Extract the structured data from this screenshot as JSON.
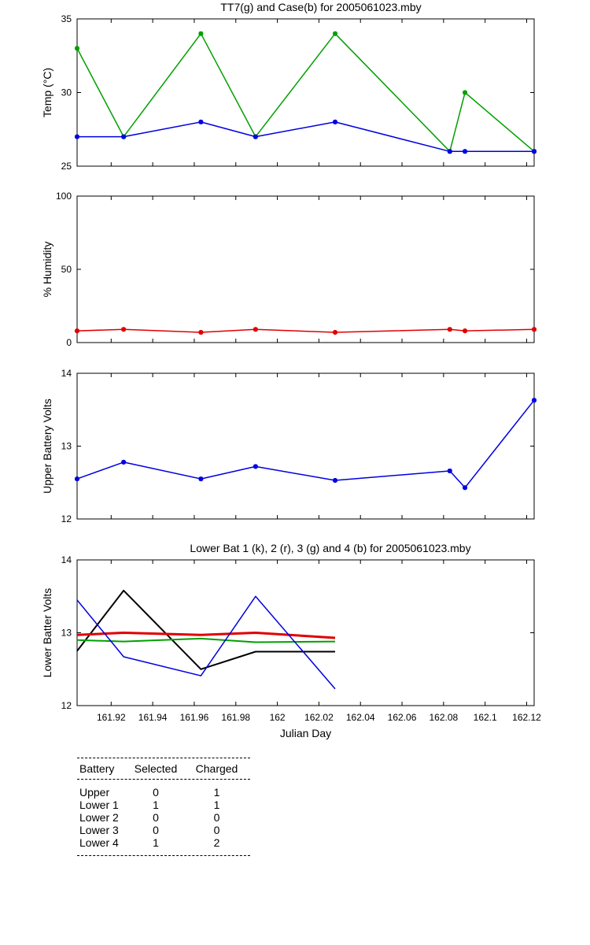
{
  "chart_data": [
    {
      "type": "line",
      "title": "TT7(g) and Case(b) for 2005061023.mby",
      "xlabel": "",
      "ylabel": "Temp  (°C)",
      "xlim": [
        161.9036,
        162.1236
      ],
      "ylim": [
        25,
        35
      ],
      "yticks": [
        "25",
        "30",
        "35"
      ],
      "xticks": [
        161.92,
        161.94,
        161.96,
        161.98,
        162.0,
        162.02,
        162.04,
        162.06,
        162.08,
        162.1,
        162.12
      ],
      "grid": false,
      "series": [
        {
          "color": "#00a000",
          "markers": true,
          "x": [
            161.9036,
            161.926,
            161.9632,
            161.9895,
            162.0278,
            162.083,
            162.0903,
            162.1236
          ],
          "y": [
            33,
            27,
            34,
            27,
            34,
            26,
            30,
            26
          ]
        },
        {
          "color": "#0000e0",
          "markers": true,
          "x": [
            161.9036,
            161.926,
            161.9632,
            161.9895,
            162.0278,
            162.083,
            162.0903,
            162.1236
          ],
          "y": [
            27,
            27,
            28,
            27,
            28,
            26,
            26,
            26
          ]
        }
      ]
    },
    {
      "type": "line",
      "title": "",
      "xlabel": "",
      "ylabel": "% Humidity",
      "xlim": [
        161.9036,
        162.1236
      ],
      "ylim": [
        0,
        100
      ],
      "yticks": [
        "0",
        "50",
        "100"
      ],
      "grid": false,
      "series": [
        {
          "color": "#e00000",
          "markers": true,
          "x": [
            161.9036,
            161.926,
            161.9632,
            161.9895,
            162.0278,
            162.083,
            162.0903,
            162.1236
          ],
          "y": [
            8,
            9,
            7,
            9,
            7,
            9,
            8,
            9
          ]
        }
      ]
    },
    {
      "type": "line",
      "title": "",
      "xlabel": "",
      "ylabel": "Upper Battery Volts",
      "xlim": [
        161.9036,
        162.1236
      ],
      "ylim": [
        12,
        14
      ],
      "yticks": [
        "12",
        "13",
        "14"
      ],
      "grid": false,
      "series": [
        {
          "color": "#0000e0",
          "markers": true,
          "x": [
            161.9036,
            161.926,
            161.9632,
            161.9895,
            162.0278,
            162.083,
            162.0903,
            162.1236
          ],
          "y": [
            12.55,
            12.78,
            12.55,
            12.72,
            12.53,
            12.66,
            12.43,
            13.63
          ]
        }
      ]
    },
    {
      "type": "line",
      "title": "Lower Bat 1 (k), 2 (r), 3 (g) and 4 (b) for 2005061023.mby",
      "xlabel": "Julian Day",
      "ylabel": "Lower Batter Volts",
      "xlim": [
        161.9036,
        162.1236
      ],
      "ylim": [
        12,
        14
      ],
      "yticks": [
        "12",
        "13",
        "14"
      ],
      "xticklabels": [
        "161.92",
        "161.94",
        "161.96",
        "161.98",
        "162",
        "162.02",
        "162.04",
        "162.06",
        "162.08",
        "162.1",
        "162.12"
      ],
      "grid": false,
      "series": [
        {
          "color": "#000000",
          "markers": false,
          "width": 2,
          "x": [
            161.9036,
            161.926,
            161.9632,
            161.9895,
            162.0278
          ],
          "y": [
            12.75,
            13.58,
            12.5,
            12.74,
            12.74
          ]
        },
        {
          "color": "#e00000",
          "markers": false,
          "width": 3,
          "x": [
            161.9036,
            161.926,
            161.9632,
            161.9895,
            162.0278
          ],
          "y": [
            12.97,
            13.0,
            12.97,
            13.0,
            12.93
          ]
        },
        {
          "color": "#00a000",
          "markers": false,
          "width": 2,
          "x": [
            161.9036,
            161.926,
            161.9632,
            161.9895,
            162.0278
          ],
          "y": [
            12.9,
            12.88,
            12.92,
            12.87,
            12.88
          ]
        },
        {
          "color": "#0000e0",
          "markers": false,
          "width": 1.5,
          "x": [
            161.9036,
            161.926,
            161.9632,
            161.9895,
            162.0278
          ],
          "y": [
            13.45,
            12.67,
            12.41,
            13.5,
            12.23
          ]
        }
      ]
    }
  ],
  "battery_table": {
    "headers": {
      "battery": "Battery",
      "selected": "Selected",
      "charged": "Charged"
    },
    "rows": [
      {
        "battery": "Upper",
        "selected": "0",
        "charged": "1"
      },
      {
        "battery": "Lower 1",
        "selected": "1",
        "charged": "1"
      },
      {
        "battery": "Lower 2",
        "selected": "0",
        "charged": "0"
      },
      {
        "battery": "Lower 3",
        "selected": "0",
        "charged": "0"
      },
      {
        "battery": "Lower 4",
        "selected": "1",
        "charged": "2"
      }
    ]
  }
}
